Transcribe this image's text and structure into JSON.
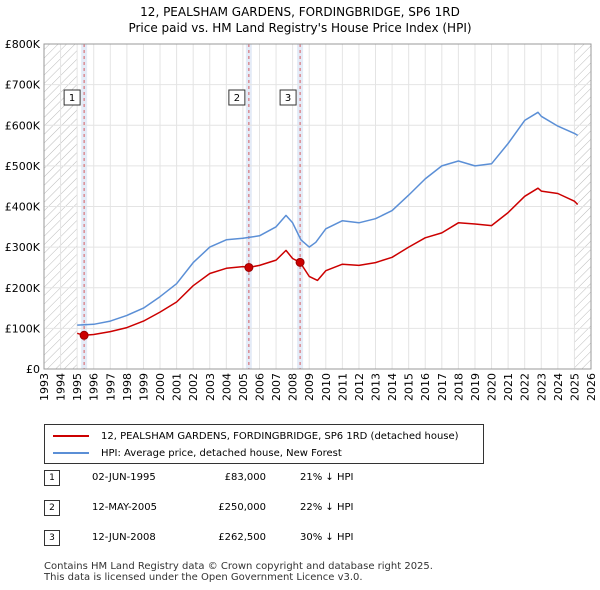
{
  "header": {
    "title_line1": "12, PEALSHAM GARDENS, FORDINGBRIDGE, SP6 1RD",
    "title_line2": "Price paid vs. HM Land Registry's House Price Index (HPI)"
  },
  "colors": {
    "property": "#cc0000",
    "hpi": "#5b8fd6",
    "shade": "#dde6f5",
    "hatch": "#bbbbbb"
  },
  "chart_data": {
    "type": "line",
    "title": "12, PEALSHAM GARDENS, FORDINGBRIDGE, SP6 1RD — Price paid vs. HM Land Registry's House Price Index (HPI)",
    "xlabel": "",
    "ylabel": "",
    "xlim": [
      1993,
      2026
    ],
    "ylim": [
      0,
      800000
    ],
    "x_ticks": [
      "1993",
      "1994",
      "1995",
      "1996",
      "1997",
      "1998",
      "1999",
      "2000",
      "2001",
      "2002",
      "2003",
      "2004",
      "2005",
      "2006",
      "2007",
      "2008",
      "2009",
      "2010",
      "2011",
      "2012",
      "2013",
      "2014",
      "2015",
      "2016",
      "2017",
      "2018",
      "2019",
      "2020",
      "2021",
      "2022",
      "2023",
      "2024",
      "2025",
      "2026"
    ],
    "y_ticks": [
      {
        "value": 0,
        "label": "£0"
      },
      {
        "value": 100000,
        "label": "£100K"
      },
      {
        "value": 200000,
        "label": "£200K"
      },
      {
        "value": 300000,
        "label": "£300K"
      },
      {
        "value": 400000,
        "label": "£400K"
      },
      {
        "value": 500000,
        "label": "£500K"
      },
      {
        "value": 600000,
        "label": "£600K"
      },
      {
        "value": 700000,
        "label": "£700K"
      },
      {
        "value": 800000,
        "label": "£800K"
      }
    ],
    "grid": true,
    "hatched_ranges": [
      [
        1993,
        1995.0
      ],
      [
        2025.0,
        2026
      ]
    ],
    "series": [
      {
        "name": "12, PEALSHAM GARDENS, FORDINGBRIDGE, SP6 1RD (detached house)",
        "x": [
          1995.0,
          1995.42,
          1996.0,
          1997.0,
          1998.0,
          1999.0,
          2000.0,
          2001.0,
          2002.0,
          2003.0,
          2004.0,
          2005.0,
          2005.36,
          2006.0,
          2007.0,
          2007.6,
          2008.0,
          2008.45,
          2009.0,
          2009.5,
          2010.0,
          2011.0,
          2012.0,
          2013.0,
          2014.0,
          2015.0,
          2016.0,
          2017.0,
          2018.0,
          2019.0,
          2020.0,
          2021.0,
          2022.0,
          2022.8,
          2023.0,
          2024.0,
          2025.0,
          2025.2
        ],
        "y": [
          88000,
          83000,
          85000,
          92000,
          102000,
          118000,
          140000,
          165000,
          205000,
          235000,
          248000,
          252000,
          250000,
          255000,
          268000,
          292000,
          272000,
          262500,
          228000,
          218000,
          242000,
          258000,
          255000,
          262000,
          275000,
          300000,
          323000,
          335000,
          360000,
          357000,
          353000,
          385000,
          425000,
          445000,
          438000,
          432000,
          413000,
          405000
        ]
      },
      {
        "name": "HPI: Average price, detached house, New Forest",
        "x": [
          1995.0,
          1996.0,
          1997.0,
          1998.0,
          1999.0,
          2000.0,
          2001.0,
          2002.0,
          2003.0,
          2004.0,
          2005.0,
          2006.0,
          2007.0,
          2007.6,
          2008.0,
          2008.5,
          2009.0,
          2009.4,
          2010.0,
          2011.0,
          2012.0,
          2013.0,
          2014.0,
          2015.0,
          2016.0,
          2017.0,
          2018.0,
          2019.0,
          2020.0,
          2021.0,
          2022.0,
          2022.8,
          2023.0,
          2024.0,
          2025.0,
          2025.2
        ],
        "y": [
          108000,
          110000,
          118000,
          132000,
          150000,
          178000,
          210000,
          262000,
          300000,
          318000,
          322000,
          328000,
          350000,
          378000,
          360000,
          318000,
          300000,
          312000,
          345000,
          365000,
          360000,
          370000,
          390000,
          428000,
          468000,
          500000,
          512000,
          500000,
          505000,
          555000,
          612000,
          632000,
          622000,
          598000,
          580000,
          575000
        ]
      }
    ],
    "sales": [
      {
        "label": "1",
        "x": 1995.42,
        "y": 83000
      },
      {
        "label": "2",
        "x": 2005.36,
        "y": 250000
      },
      {
        "label": "3",
        "x": 2008.45,
        "y": 262500
      }
    ]
  },
  "legend": {
    "property_label": "12, PEALSHAM GARDENS, FORDINGBRIDGE, SP6 1RD (detached house)",
    "hpi_label": "HPI: Average price, detached house, New Forest"
  },
  "sales_table": [
    {
      "num": "1",
      "date": "02-JUN-1995",
      "price": "£83,000",
      "hpi": "21% ↓ HPI"
    },
    {
      "num": "2",
      "date": "12-MAY-2005",
      "price": "£250,000",
      "hpi": "22% ↓ HPI"
    },
    {
      "num": "3",
      "date": "12-JUN-2008",
      "price": "£262,500",
      "hpi": "30% ↓ HPI"
    }
  ],
  "footer": {
    "line1": "Contains HM Land Registry data © Crown copyright and database right 2025.",
    "line2": "This data is licensed under the Open Government Licence v3.0."
  }
}
